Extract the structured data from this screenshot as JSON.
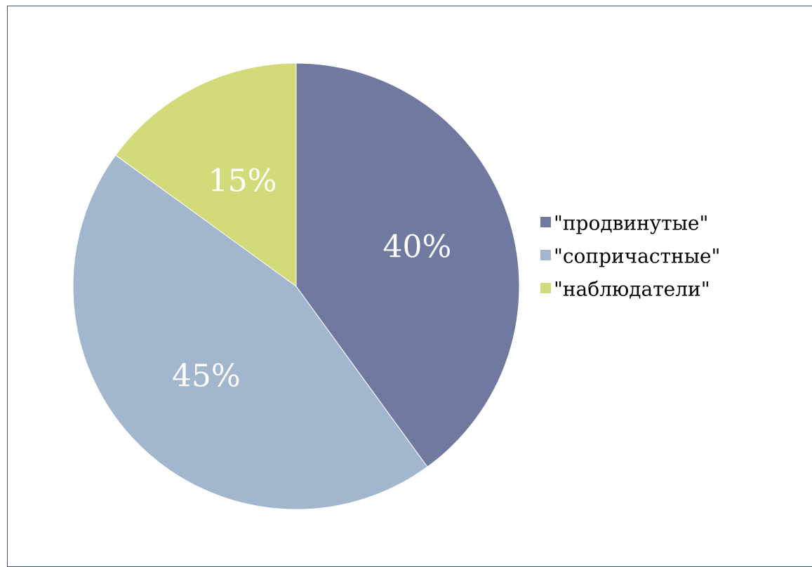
{
  "chart_data": {
    "type": "pie",
    "categories": [
      "\"продвинутые\"",
      "\"сопричастные\"",
      "\"наблюдатели\""
    ],
    "values": [
      40,
      45,
      15
    ],
    "data_labels": [
      "40%",
      "45%",
      "15%"
    ],
    "colors": [
      "#707aa0",
      "#a2b7cd",
      "#d3da79"
    ],
    "start_angle_deg": 0,
    "direction": "clockwise",
    "legend_position": "right",
    "title": ""
  }
}
